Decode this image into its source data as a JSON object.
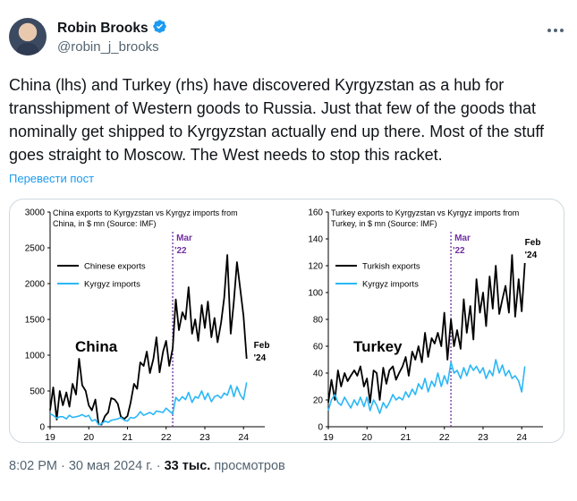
{
  "author": {
    "display_name": "Robin Brooks",
    "handle": "@robin_j_brooks",
    "avatar_icon": "avatar-photo",
    "verified_icon": "verified-badge-icon",
    "verified_color": "#1d9bf0"
  },
  "tweet": {
    "text": "China (lhs) and Turkey (rhs) have discovered Kyrgyzstan as a hub for transshipment of Western goods to Russia. Just that few of the goods that nominally get shipped to Kyrgyzstan actually end up there. Most of the stuff goes straight to Moscow. The West needs to stop this racket.",
    "translate_label": "Перевести пост"
  },
  "meta": {
    "time": "8:02 PM",
    "date": "30 мая 2024 г.",
    "separator": "·",
    "views_count": "33 тыс.",
    "views_label": "просмотров"
  },
  "colors": {
    "series1": "#000000",
    "series2": "#2ab7f6",
    "marker": "#7030a0",
    "link": "#1d9bf0"
  },
  "chart_data": [
    {
      "type": "line",
      "title": "China exports to Kyrgyzstan vs Kyrgyz imports from China, in $ mn (Source: IMF)",
      "big_label": "China",
      "xlabel": "",
      "ylabel": "",
      "x_ticks": [
        "19",
        "20",
        "21",
        "22",
        "23",
        "24"
      ],
      "xlim": [
        2019.0,
        2024.55
      ],
      "ylim": [
        0,
        3000
      ],
      "y_ticks": [
        0,
        500,
        1000,
        1500,
        2000,
        2500,
        3000
      ],
      "legend": "top-left",
      "grid": false,
      "marker": {
        "x": 2022.17,
        "label_line1": "Mar",
        "label_line2": "'22"
      },
      "end_label": {
        "line1": "Feb",
        "line2": "'24"
      },
      "series": [
        {
          "name": "Chinese exports",
          "color": "#000000",
          "x": [
            2019.0,
            2019.08,
            2019.17,
            2019.25,
            2019.33,
            2019.42,
            2019.5,
            2019.58,
            2019.67,
            2019.75,
            2019.83,
            2019.92,
            2020.0,
            2020.08,
            2020.17,
            2020.25,
            2020.33,
            2020.42,
            2020.5,
            2020.58,
            2020.67,
            2020.75,
            2020.83,
            2020.92,
            2021.0,
            2021.08,
            2021.17,
            2021.25,
            2021.33,
            2021.42,
            2021.5,
            2021.58,
            2021.67,
            2021.75,
            2021.83,
            2021.92,
            2022.0,
            2022.08,
            2022.17,
            2022.25,
            2022.33,
            2022.42,
            2022.5,
            2022.58,
            2022.67,
            2022.75,
            2022.83,
            2022.92,
            2023.0,
            2023.08,
            2023.17,
            2023.25,
            2023.33,
            2023.42,
            2023.5,
            2023.58,
            2023.67,
            2023.75,
            2023.83,
            2023.92,
            2024.0,
            2024.08
          ],
          "y": [
            230,
            550,
            100,
            500,
            300,
            480,
            280,
            600,
            450,
            950,
            580,
            500,
            300,
            230,
            380,
            40,
            30,
            150,
            200,
            400,
            380,
            320,
            140,
            110,
            150,
            330,
            600,
            530,
            900,
            850,
            1050,
            750,
            950,
            1250,
            760,
            1050,
            1200,
            850,
            1100,
            1780,
            1350,
            1600,
            1500,
            1950,
            1300,
            1500,
            1200,
            1700,
            1380,
            1750,
            1250,
            1520,
            1180,
            1450,
            1800,
            2400,
            1300,
            1750,
            2300,
            1900,
            1550,
            950
          ]
        },
        {
          "name": "Kyrgyz imports",
          "color": "#2ab7f6",
          "x": [
            2019.0,
            2019.08,
            2019.17,
            2019.25,
            2019.33,
            2019.42,
            2019.5,
            2019.58,
            2019.67,
            2019.75,
            2019.83,
            2019.92,
            2020.0,
            2020.08,
            2020.17,
            2020.25,
            2020.33,
            2020.42,
            2020.5,
            2020.58,
            2020.67,
            2020.75,
            2020.83,
            2020.92,
            2021.0,
            2021.08,
            2021.17,
            2021.25,
            2021.33,
            2021.42,
            2021.5,
            2021.58,
            2021.67,
            2021.75,
            2021.83,
            2021.92,
            2022.0,
            2022.08,
            2022.17,
            2022.25,
            2022.33,
            2022.42,
            2022.5,
            2022.58,
            2022.67,
            2022.75,
            2022.83,
            2022.92,
            2023.0,
            2023.08,
            2023.17,
            2023.25,
            2023.33,
            2023.42,
            2023.5,
            2023.58,
            2023.67,
            2023.75,
            2023.83,
            2023.92,
            2024.0,
            2024.08
          ],
          "y": [
            180,
            160,
            120,
            140,
            140,
            110,
            160,
            130,
            140,
            150,
            170,
            140,
            160,
            80,
            100,
            30,
            40,
            80,
            60,
            90,
            100,
            110,
            130,
            90,
            80,
            130,
            120,
            150,
            210,
            160,
            180,
            200,
            170,
            220,
            210,
            200,
            260,
            220,
            180,
            410,
            360,
            420,
            380,
            480,
            340,
            420,
            400,
            500,
            380,
            470,
            350,
            420,
            440,
            400,
            470,
            440,
            580,
            420,
            560,
            440,
            380,
            620
          ]
        }
      ]
    },
    {
      "type": "line",
      "title": "Turkey exports to Kyrgyzstan vs Kyrgyz imports from Turkey, in $ mn (Source: IMF)",
      "big_label": "Turkey",
      "xlabel": "",
      "ylabel": "",
      "x_ticks": [
        "19",
        "20",
        "21",
        "22",
        "23",
        "24"
      ],
      "xlim": [
        2019.0,
        2024.55
      ],
      "ylim": [
        0,
        160
      ],
      "y_ticks": [
        0,
        20,
        40,
        60,
        80,
        100,
        120,
        140,
        160
      ],
      "legend": "top-left",
      "grid": false,
      "marker": {
        "x": 2022.17,
        "label_line1": "Mar",
        "label_line2": "'22"
      },
      "end_label": {
        "line1": "Feb",
        "line2": "'24"
      },
      "series": [
        {
          "name": "Turkish exports",
          "color": "#000000",
          "x": [
            2019.0,
            2019.08,
            2019.17,
            2019.25,
            2019.33,
            2019.42,
            2019.5,
            2019.58,
            2019.67,
            2019.75,
            2019.83,
            2019.92,
            2020.0,
            2020.08,
            2020.17,
            2020.25,
            2020.33,
            2020.42,
            2020.5,
            2020.58,
            2020.67,
            2020.75,
            2020.83,
            2020.92,
            2021.0,
            2021.08,
            2021.17,
            2021.25,
            2021.33,
            2021.42,
            2021.5,
            2021.58,
            2021.67,
            2021.75,
            2021.83,
            2021.92,
            2022.0,
            2022.08,
            2022.17,
            2022.25,
            2022.33,
            2022.42,
            2022.5,
            2022.58,
            2022.67,
            2022.75,
            2022.83,
            2022.92,
            2023.0,
            2023.08,
            2023.17,
            2023.25,
            2023.33,
            2023.42,
            2023.5,
            2023.58,
            2023.67,
            2023.75,
            2023.83,
            2023.92,
            2024.0,
            2024.08
          ],
          "y": [
            18,
            35,
            20,
            42,
            30,
            40,
            34,
            38,
            42,
            38,
            45,
            30,
            36,
            18,
            42,
            40,
            20,
            44,
            32,
            42,
            45,
            35,
            40,
            45,
            52,
            38,
            56,
            50,
            60,
            48,
            70,
            52,
            66,
            62,
            70,
            60,
            85,
            50,
            80,
            60,
            72,
            58,
            95,
            70,
            90,
            65,
            110,
            85,
            100,
            75,
            112,
            88,
            120,
            84,
            95,
            105,
            85,
            128,
            82,
            110,
            86,
            122
          ]
        },
        {
          "name": "Kyrgyz imports",
          "color": "#2ab7f6",
          "x": [
            2019.0,
            2019.08,
            2019.17,
            2019.25,
            2019.33,
            2019.42,
            2019.5,
            2019.58,
            2019.67,
            2019.75,
            2019.83,
            2019.92,
            2020.0,
            2020.08,
            2020.17,
            2020.25,
            2020.33,
            2020.42,
            2020.5,
            2020.58,
            2020.67,
            2020.75,
            2020.83,
            2020.92,
            2021.0,
            2021.08,
            2021.17,
            2021.25,
            2021.33,
            2021.42,
            2021.5,
            2021.58,
            2021.67,
            2021.75,
            2021.83,
            2021.92,
            2022.0,
            2022.08,
            2022.17,
            2022.25,
            2022.33,
            2022.42,
            2022.5,
            2022.58,
            2022.67,
            2022.75,
            2022.83,
            2022.92,
            2023.0,
            2023.08,
            2023.17,
            2023.25,
            2023.33,
            2023.42,
            2023.5,
            2023.58,
            2023.67,
            2023.75,
            2023.83,
            2023.92,
            2024.0,
            2024.08
          ],
          "y": [
            12,
            20,
            24,
            18,
            16,
            22,
            18,
            14,
            20,
            16,
            22,
            15,
            22,
            12,
            20,
            16,
            10,
            18,
            14,
            18,
            24,
            20,
            22,
            20,
            26,
            22,
            28,
            24,
            32,
            28,
            36,
            26,
            34,
            30,
            40,
            30,
            38,
            32,
            48,
            40,
            42,
            36,
            44,
            38,
            46,
            42,
            45,
            40,
            44,
            36,
            42,
            38,
            50,
            40,
            46,
            38,
            42,
            36,
            38,
            34,
            26,
            45
          ]
        }
      ]
    }
  ]
}
